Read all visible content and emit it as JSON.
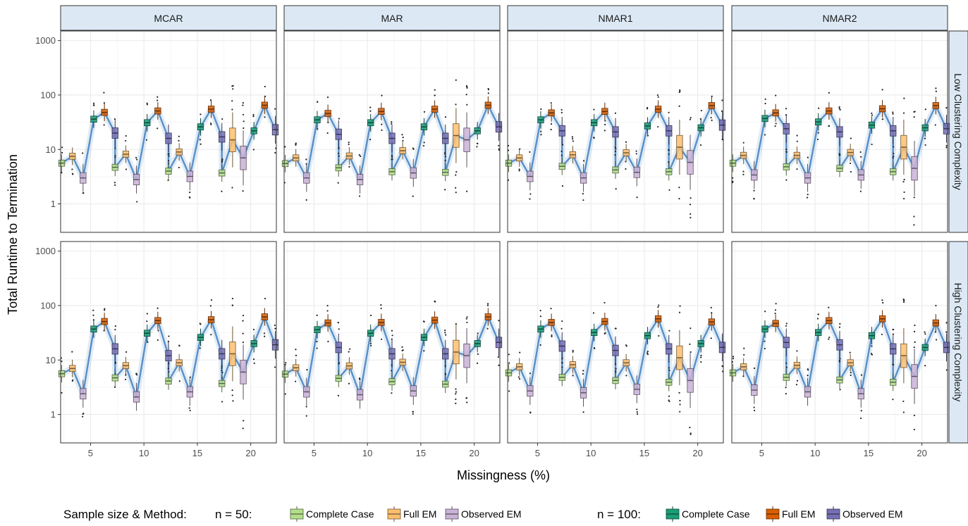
{
  "chart_data": {
    "type": "boxplot",
    "ylabel": "Total Runtime to Termination",
    "xlabel": "Missingness (%)",
    "y_scale": "log10",
    "ylim": [
      0.3,
      1500
    ],
    "y_ticks": [
      1,
      10,
      100,
      1000
    ],
    "y_tick_labels": [
      "1",
      "10",
      "100",
      "1000"
    ],
    "x_ticks": [
      5,
      10,
      15,
      20
    ],
    "x_tick_labels": [
      "5",
      "10",
      "15",
      "20"
    ],
    "xlim": [
      2.2,
      22.4
    ],
    "grid": true,
    "mechanisms": [
      "MCAR",
      "MAR",
      "NMAR1",
      "NMAR2"
    ],
    "complexities": [
      "Low Clustering Complexity",
      "High Clustering Complexity"
    ],
    "legend": {
      "title": "Sample size & Method:",
      "placement": "bottom",
      "groups": [
        {
          "label": "n = 50:",
          "items": [
            {
              "name": "Complete Case",
              "color": "#b3de8a"
            },
            {
              "name": "Full EM",
              "color": "#fdbf6f"
            },
            {
              "name": "Observed EM",
              "color": "#cab2d6"
            }
          ]
        },
        {
          "label": "n = 100:",
          "items": [
            {
              "name": "Complete Case",
              "color": "#1b9e77"
            },
            {
              "name": "Full EM",
              "color": "#d95f02"
            },
            {
              "name": "Observed EM",
              "color": "#7570b3"
            }
          ]
        }
      ]
    },
    "method_order": [
      "n50-CC",
      "n50-FullEM",
      "n50-ObsEM",
      "n100-CC",
      "n100-FullEM",
      "n100-ObsEM"
    ],
    "colors": [
      "#b3de8a",
      "#fdbf6f",
      "#cab2d6",
      "#1b9e77",
      "#d95f02",
      "#7570b3"
    ],
    "panels": [
      {
        "mechanism": "MCAR",
        "complexity": "Low Clustering Complexity",
        "missingness": [
          {
            "x": 5,
            "medians": [
              5.6,
              7.5,
              3.0,
              36,
              48,
              20
            ]
          },
          {
            "x": 10,
            "medians": [
              4.7,
              8.2,
              2.8,
              31,
              51,
              16
            ]
          },
          {
            "x": 15,
            "medians": [
              4.0,
              9.0,
              3.2,
              26,
              55,
              17
            ]
          },
          {
            "x": 20,
            "medians": [
              3.7,
              15,
              7,
              22,
              65,
              23
            ]
          }
        ]
      },
      {
        "mechanism": "MAR",
        "complexity": "Low Clustering Complexity",
        "missingness": [
          {
            "x": 5,
            "medians": [
              5.5,
              7.0,
              3.0,
              35,
              46,
              19
            ]
          },
          {
            "x": 10,
            "medians": [
              4.6,
              7.6,
              2.8,
              31,
              50,
              16
            ]
          },
          {
            "x": 15,
            "medians": [
              3.9,
              9.5,
              3.7,
              26,
              55,
              16
            ]
          },
          {
            "x": 20,
            "medians": [
              3.8,
              18,
              15,
              22,
              65,
              26
            ]
          }
        ]
      },
      {
        "mechanism": "NMAR1",
        "complexity": "Low Clustering Complexity",
        "missingness": [
          {
            "x": 5,
            "medians": [
              5.6,
              7.0,
              3.2,
              35,
              47,
              22
            ]
          },
          {
            "x": 10,
            "medians": [
              4.9,
              8.0,
              3.0,
              31,
              50,
              21
            ]
          },
          {
            "x": 15,
            "medians": [
              4.2,
              8.7,
              3.8,
              27,
              55,
              22
            ]
          },
          {
            "x": 20,
            "medians": [
              3.9,
              11,
              5.8,
              25,
              64,
              28
            ]
          }
        ]
      },
      {
        "mechanism": "NMAR2",
        "complexity": "Low Clustering Complexity",
        "missingness": [
          {
            "x": 5,
            "medians": [
              5.6,
              7.8,
              3.4,
              37,
              47,
              24
            ]
          },
          {
            "x": 10,
            "medians": [
              4.8,
              7.8,
              3.0,
              32,
              51,
              21
            ]
          },
          {
            "x": 15,
            "medians": [
              4.5,
              8.8,
              3.4,
              28,
              56,
              22
            ]
          },
          {
            "x": 20,
            "medians": [
              3.9,
              11,
              4.5,
              25,
              64,
              24
            ]
          }
        ]
      },
      {
        "mechanism": "MCAR",
        "complexity": "High Clustering Complexity",
        "missingness": [
          {
            "x": 5,
            "medians": [
              5.6,
              7.0,
              2.4,
              37,
              51,
              16
            ]
          },
          {
            "x": 10,
            "medians": [
              4.7,
              7.9,
              2.1,
              31,
              53,
              12
            ]
          },
          {
            "x": 15,
            "medians": [
              4.1,
              8.9,
              2.6,
              26,
              55,
              13
            ]
          },
          {
            "x": 20,
            "medians": [
              3.7,
              13,
              6,
              20,
              62,
              19
            ]
          }
        ]
      },
      {
        "mechanism": "MAR",
        "complexity": "High Clustering Complexity",
        "missingness": [
          {
            "x": 5,
            "medians": [
              5.5,
              7.2,
              2.6,
              36,
              48,
              17
            ]
          },
          {
            "x": 10,
            "medians": [
              4.6,
              7.8,
              2.3,
              31,
              49,
              13
            ]
          },
          {
            "x": 15,
            "medians": [
              4.0,
              9.1,
              2.7,
              26,
              54,
              13
            ]
          },
          {
            "x": 20,
            "medians": [
              3.6,
              14,
              12,
              20,
              62,
              21
            ]
          }
        ]
      },
      {
        "mechanism": "NMAR1",
        "complexity": "High Clustering Complexity",
        "missingness": [
          {
            "x": 5,
            "medians": [
              5.8,
              7.5,
              2.7,
              37,
              49,
              18
            ]
          },
          {
            "x": 10,
            "medians": [
              4.8,
              8.2,
              2.5,
              32,
              51,
              15
            ]
          },
          {
            "x": 15,
            "medians": [
              4.2,
              8.9,
              2.9,
              28,
              57,
              16
            ]
          },
          {
            "x": 20,
            "medians": [
              3.9,
              11,
              4.2,
              20,
              50,
              17
            ]
          }
        ]
      },
      {
        "mechanism": "NMAR2",
        "complexity": "High Clustering Complexity",
        "missingness": [
          {
            "x": 5,
            "medians": [
              5.8,
              7.5,
              2.8,
              37,
              47,
              21
            ]
          },
          {
            "x": 10,
            "medians": [
              4.8,
              8.0,
              2.6,
              32,
              53,
              19
            ]
          },
          {
            "x": 15,
            "medians": [
              4.3,
              8.9,
              2.4,
              28,
              57,
              16
            ]
          },
          {
            "x": 20,
            "medians": [
              3.9,
              12,
              5,
              17,
              48,
              17
            ]
          }
        ]
      }
    ]
  }
}
